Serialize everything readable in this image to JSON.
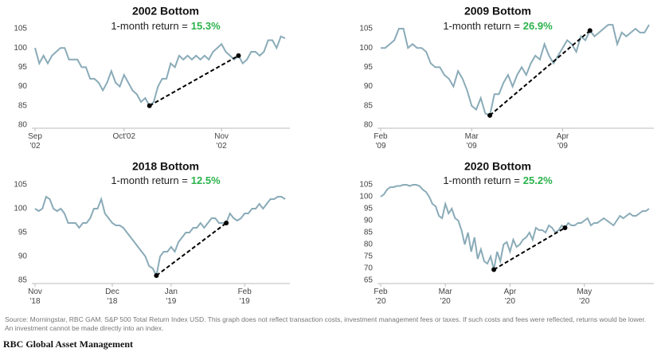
{
  "chart_data": [
    {
      "type": "line",
      "title": "2002 Bottom",
      "subtitle": "1-month return =",
      "return_label": "15.3%",
      "return_color": "#2bb24c",
      "color": "#8aabb8",
      "values": [
        100,
        96,
        98,
        96,
        98,
        99,
        100,
        100,
        97,
        97,
        97,
        95,
        95,
        92,
        92,
        91,
        89,
        91,
        94,
        91,
        90,
        93,
        91,
        89,
        88,
        86,
        87,
        85,
        86,
        90,
        92,
        92,
        96,
        95,
        98,
        97,
        98,
        97,
        98,
        97,
        98,
        97,
        99,
        100,
        101,
        99,
        98,
        97,
        98,
        96,
        97,
        99,
        99,
        98,
        99,
        102,
        102,
        100,
        103,
        102.5
      ],
      "xlim": [
        0,
        59
      ],
      "xticks": [
        {
          "value": 0,
          "label": "Sep '02"
        },
        {
          "value": 21,
          "label": "Oct'02"
        },
        {
          "value": 44,
          "label": "Nov '02"
        }
      ],
      "ylim": [
        80,
        105
      ],
      "yticks": [
        80,
        85,
        90,
        95,
        100,
        105
      ],
      "return_points": [
        27,
        48
      ]
    },
    {
      "type": "line",
      "title": "2009 Bottom",
      "subtitle": "1-month return =",
      "return_label": "26.9%",
      "return_color": "#2bb24c",
      "color": "#8aabb8",
      "values": [
        100,
        100,
        101,
        102,
        105,
        105,
        100,
        101,
        100,
        100,
        99,
        96,
        95,
        95,
        93,
        92,
        90,
        94,
        92,
        89,
        85,
        84,
        87,
        83,
        82.5,
        88,
        88,
        91,
        93,
        90,
        93,
        95,
        93,
        96,
        98,
        97,
        101,
        98,
        96,
        98,
        100,
        102,
        101,
        99,
        103,
        102,
        104.5,
        103,
        104,
        105,
        106,
        106,
        101,
        104,
        103,
        104,
        105,
        104,
        104,
        106
      ],
      "xlim": [
        0,
        59
      ],
      "xticks": [
        {
          "value": 0,
          "label": "Feb '09"
        },
        {
          "value": 20,
          "label": "Mar '09"
        },
        {
          "value": 40,
          "label": "Apr '09"
        }
      ],
      "ylim": [
        80,
        105
      ],
      "yticks": [
        80,
        85,
        90,
        95,
        100,
        105
      ],
      "return_points": [
        24,
        46
      ]
    },
    {
      "type": "line",
      "title": "2018 Bottom",
      "subtitle": "1-month return =",
      "return_label": "12.5%",
      "return_color": "#2bb24c",
      "color": "#8aabb8",
      "values": [
        100,
        99.5,
        100,
        102.5,
        102,
        100,
        99.5,
        100,
        99,
        97,
        97,
        97,
        96,
        97,
        97,
        98,
        100,
        100,
        102,
        99,
        98,
        97,
        96.5,
        96.5,
        96,
        95,
        94,
        93,
        92,
        91,
        90,
        88,
        87.5,
        86,
        90,
        91,
        91,
        92,
        91,
        93,
        94,
        95,
        95,
        96,
        96,
        97,
        96,
        97,
        98,
        98,
        97,
        97,
        97,
        99,
        98,
        97.5,
        98,
        99,
        99,
        100,
        100,
        101,
        100,
        101,
        102,
        102,
        102.5,
        102.5,
        102
      ],
      "xlim": [
        0,
        68
      ],
      "xticks": [
        {
          "value": 0,
          "label": "Nov '18"
        },
        {
          "value": 21,
          "label": "Dec '18"
        },
        {
          "value": 37,
          "label": "Jan '19"
        },
        {
          "value": 57,
          "label": "Feb '19"
        }
      ],
      "ylim": [
        85,
        105
      ],
      "yticks": [
        85,
        90,
        95,
        100,
        105
      ],
      "return_points": [
        33,
        52
      ]
    },
    {
      "type": "line",
      "title": "2020 Bottom",
      "subtitle": "1-month return =",
      "return_label": "25.2%",
      "return_color": "#2bb24c",
      "color": "#8aabb8",
      "values": [
        100,
        101,
        103,
        104,
        104,
        104.5,
        104.5,
        105,
        105,
        104.5,
        105,
        105,
        104.5,
        103,
        102,
        100,
        97,
        96,
        92,
        91,
        97,
        93,
        95,
        91,
        90,
        86,
        80,
        85,
        77,
        83,
        74,
        78,
        73,
        72,
        75,
        69.5,
        77,
        73,
        80,
        81,
        77,
        82,
        79,
        80,
        82,
        83,
        85,
        82,
        87,
        86,
        86,
        85,
        88,
        87,
        85,
        86,
        88,
        87,
        89,
        88,
        88,
        89,
        89,
        90,
        91,
        88,
        89,
        89,
        90,
        91,
        90,
        89,
        88,
        90,
        92,
        91,
        92,
        93,
        92,
        92,
        93,
        94,
        94,
        95
      ],
      "xlim": [
        0,
        83
      ],
      "xticks": [
        {
          "value": 0,
          "label": "Feb '20"
        },
        {
          "value": 20,
          "label": "Mar '20"
        },
        {
          "value": 40,
          "label": "Apr '20"
        },
        {
          "value": 63,
          "label": "May '20"
        }
      ],
      "ylim": [
        65,
        105
      ],
      "yticks": [
        65,
        70,
        75,
        80,
        85,
        90,
        95,
        100,
        105
      ],
      "return_points": [
        35,
        57
      ]
    }
  ],
  "source": "Source: Morningstar, RBC GAM. S&P 500 Total Return Index USD. This graph does not reflect transaction costs, investment management fees or taxes. If such costs and fees were reflected, returns would be lower. An investment cannot be made directly into an index.",
  "brand": "RBC Global Asset Management"
}
